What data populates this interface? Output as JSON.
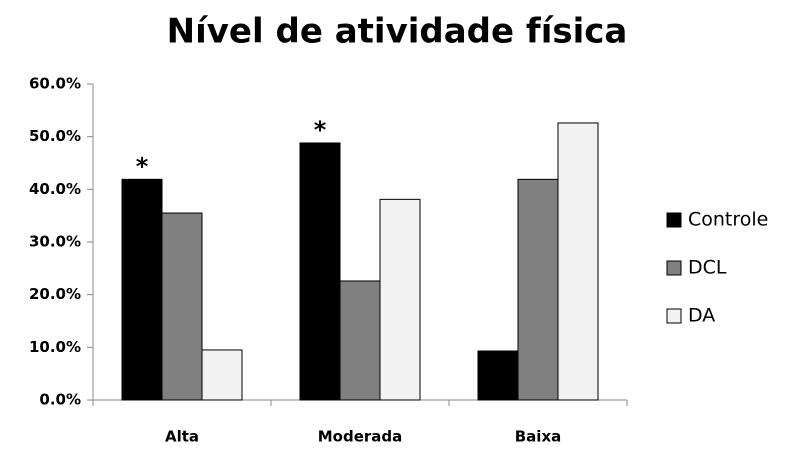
{
  "chart_data": {
    "type": "bar",
    "title": "Nível de atividade física",
    "categories": [
      "Alta",
      "Moderada",
      "Baixa"
    ],
    "series": [
      {
        "name": "Controle",
        "color": "#000000",
        "values": [
          41.9,
          48.8,
          9.3
        ]
      },
      {
        "name": "DCL",
        "color": "#808080",
        "values": [
          35.5,
          22.6,
          41.9
        ]
      },
      {
        "name": "DA",
        "color": "#f2f2f2",
        "values": [
          9.5,
          38.1,
          52.6
        ]
      }
    ],
    "annotations": [
      {
        "text": "*",
        "series": "Controle",
        "category": "Alta"
      },
      {
        "text": "*",
        "series": "Controle",
        "category": "Moderada"
      }
    ],
    "ylim": [
      0,
      60
    ],
    "yticks": [
      {
        "value": 0,
        "label": "0.0%"
      },
      {
        "value": 10,
        "label": "10.0%"
      },
      {
        "value": 20,
        "label": "20.0%"
      },
      {
        "value": 30,
        "label": "30.0%"
      },
      {
        "value": 40,
        "label": "40.0%"
      },
      {
        "value": 50,
        "label": "50.0%"
      },
      {
        "value": 60,
        "label": "60.0%"
      }
    ],
    "grid": false,
    "legend": "right"
  }
}
